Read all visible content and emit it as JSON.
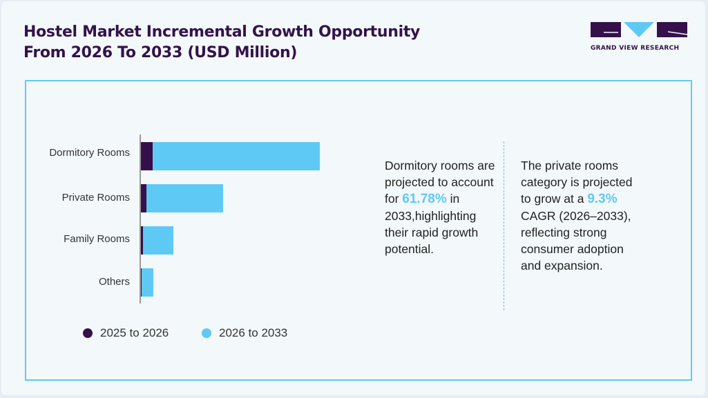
{
  "title_line1": "Hostel Market Incremental Growth Opportunity",
  "title_line2": "From 2026 To 2033 (USD Million)",
  "logo_text": "GRAND VIEW RESEARCH",
  "colors": {
    "dark": "#36104a",
    "light": "#5fc9f5"
  },
  "chart_data": {
    "type": "bar",
    "orientation": "horizontal",
    "stacked": true,
    "categories": [
      "Dormitory Rooms",
      "Private Rooms",
      "Family Rooms",
      "Others"
    ],
    "series": [
      {
        "name": "2025 to 2026",
        "color": "#36104a",
        "values": [
          18,
          9,
          4,
          2
        ]
      },
      {
        "name": "2026 to 2033",
        "color": "#5fc9f5",
        "values": [
          242,
          111,
          44,
          17
        ]
      }
    ],
    "value_note": "relative units, no value axis printed",
    "xlim": [
      0,
      260
    ],
    "grid": false,
    "legend": "bottom"
  },
  "notes": {
    "left": {
      "pre": "Dormitory rooms are projected to account for ",
      "highlight": "61.78%",
      "post": " in 2033,highlighting their rapid growth potential."
    },
    "right": {
      "pre": "The private rooms category is projected to grow at a ",
      "highlight": "9.3%",
      "post": " CAGR (2026–2033), reflecting strong consumer adoption and expansion."
    }
  }
}
